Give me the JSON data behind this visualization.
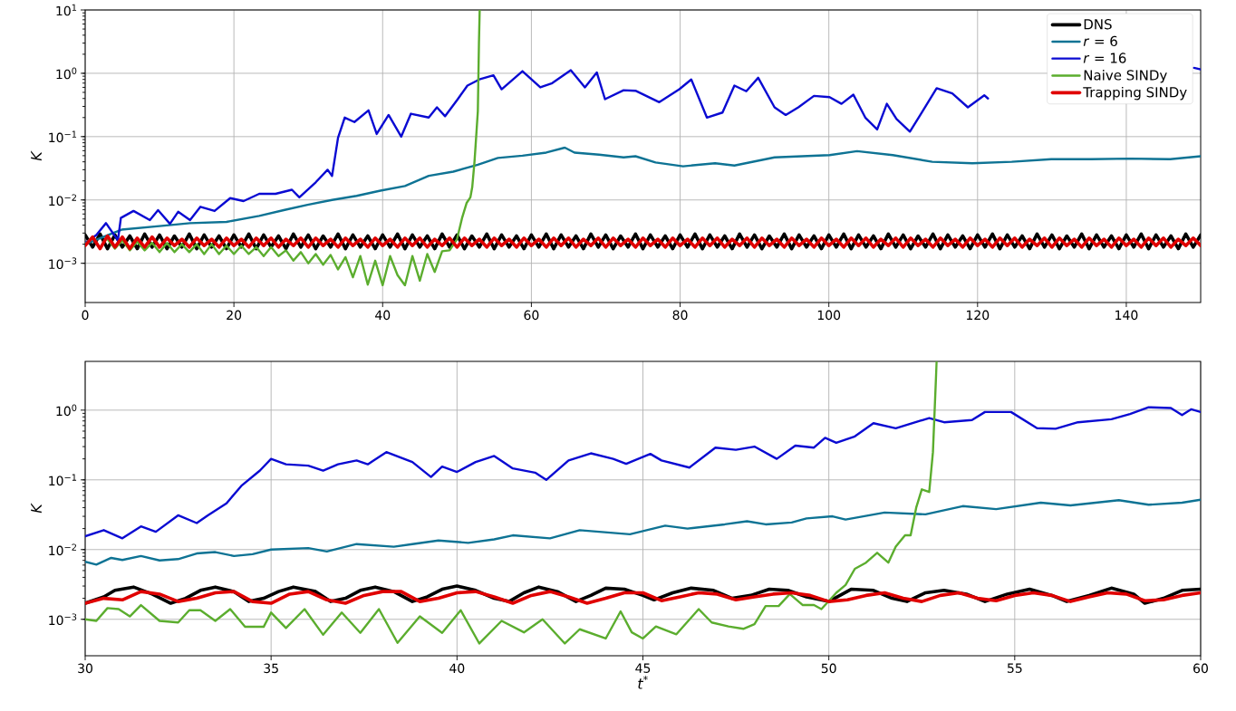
{
  "chart_data": [
    {
      "type": "line",
      "ylabel": "K",
      "log": "y",
      "grid": true,
      "legend": "top right",
      "xlim": [
        0,
        150
      ],
      "xticks": [
        0,
        20,
        40,
        60,
        80,
        100,
        120,
        140
      ],
      "ylim": [
        0.00024,
        10
      ],
      "yticks": [
        {
          "value": 0.001,
          "label": "10$^{−3}$"
        },
        {
          "value": 0.01,
          "label": "10$^{−2}$"
        },
        {
          "value": 0.1,
          "label": "10$^{−1}$"
        },
        {
          "value": 1,
          "label": "10$^{0}$"
        },
        {
          "value": 10,
          "label": "10$^{1}$"
        }
      ],
      "x": [
        0,
        1,
        2,
        3,
        4,
        5,
        6,
        7,
        8,
        9,
        10,
        11,
        12,
        13,
        14,
        15,
        16,
        17,
        18,
        19,
        20,
        21,
        22,
        23,
        24,
        25,
        26,
        27,
        28,
        29,
        30,
        31,
        32,
        33,
        34,
        35,
        36,
        37,
        38,
        39,
        40,
        41,
        42,
        43,
        44,
        45,
        46,
        47,
        48,
        49,
        50,
        51,
        52,
        53,
        54,
        55,
        56,
        57,
        58,
        59,
        60,
        61,
        62,
        63,
        64,
        65,
        66,
        67,
        68,
        69,
        70,
        71,
        72,
        73,
        74,
        75,
        76,
        77,
        78,
        79,
        80,
        81,
        82,
        83,
        84,
        85,
        86,
        87,
        88,
        89,
        90,
        91,
        92,
        93,
        94,
        95,
        96,
        97,
        98,
        99,
        100,
        101,
        102,
        103,
        104,
        105,
        106,
        107,
        108,
        109,
        110,
        111,
        112,
        113,
        114,
        115,
        116,
        117,
        118,
        119,
        120,
        121,
        122,
        123,
        124,
        125,
        126,
        127,
        128,
        129,
        130,
        131,
        132,
        133,
        134,
        135,
        136,
        137,
        138,
        139,
        140,
        141,
        142,
        143,
        144,
        145,
        146,
        147,
        148,
        149,
        150
      ],
      "series": [
        {
          "name": "DNS",
          "color": "#000000",
          "values": [
            0.0028,
            0.0018,
            0.0029,
            0.0017,
            0.0028,
            0.0018,
            0.0027,
            0.0017,
            0.0029,
            0.0018,
            0.0028,
            0.0017,
            0.0027,
            0.0018,
            0.0029,
            0.0017,
            0.0028,
            0.0018,
            0.0027,
            0.0017,
            0.0028,
            0.0018,
            0.0029,
            0.0017,
            0.0028,
            0.0018,
            0.0027,
            0.0017,
            0.0029,
            0.0018,
            0.0028,
            0.0017,
            0.0027,
            0.0018,
            0.0029,
            0.0017,
            0.0028,
            0.0018,
            0.0027,
            0.0017,
            0.0028,
            0.0018,
            0.0029,
            0.0017,
            0.0028,
            0.0018,
            0.0027,
            0.0017,
            0.0029,
            0.0018,
            0.0028,
            0.0017,
            0.0027,
            0.0018,
            0.0029,
            0.0017,
            0.0028,
            0.0018,
            0.0027,
            0.0017,
            0.0028,
            0.0018,
            0.0029,
            0.0017,
            0.0028,
            0.0018,
            0.0027,
            0.0017,
            0.0029,
            0.0018,
            0.0028,
            0.0017,
            0.0027,
            0.0018,
            0.0029,
            0.0017,
            0.0028,
            0.0018,
            0.0027,
            0.0017,
            0.0028,
            0.0018,
            0.0029,
            0.0017,
            0.0028,
            0.0018,
            0.0027,
            0.0017,
            0.0029,
            0.0018,
            0.0028,
            0.0017,
            0.0027,
            0.0018,
            0.0029,
            0.0017,
            0.0028,
            0.0018,
            0.0027,
            0.0017,
            0.0028,
            0.0018,
            0.0029,
            0.0017,
            0.0028,
            0.0018,
            0.0027,
            0.0017,
            0.0029,
            0.0018,
            0.0028,
            0.0017,
            0.0027,
            0.0018,
            0.0029,
            0.0017,
            0.0028,
            0.0018,
            0.0027,
            0.0017,
            0.0028,
            0.0018,
            0.0029,
            0.0017,
            0.0028,
            0.0018,
            0.0027,
            0.0017,
            0.0029,
            0.0018,
            0.0028,
            0.0017,
            0.0027,
            0.0018,
            0.0029,
            0.0017,
            0.0028,
            0.0018,
            0.0027,
            0.0017,
            0.0028,
            0.0018,
            0.0029,
            0.0017,
            0.0028,
            0.0018,
            0.0027,
            0.0017,
            0.0029,
            0.0018,
            0.0028
          ]
        },
        {
          "name": "*r* = 6",
          "color": "#0e7394",
          "x": [
            0,
            4.9,
            10.3,
            14.1,
            19,
            23.4,
            26.7,
            29.9,
            33.2,
            36.5,
            39.7,
            43,
            46.2,
            49.5,
            52.8,
            55.5,
            58.8,
            62,
            64.5,
            65.8,
            69.1,
            72.4,
            74,
            76.7,
            80.4,
            84.7,
            87.3,
            92.7,
            96.4,
            100.1,
            103.8,
            108.6,
            113.9,
            119.3,
            124.6,
            129.9,
            135.2,
            140.5,
            145.9,
            150
          ],
          "values": [
            0.002,
            0.0034,
            0.0039,
            0.0043,
            0.0045,
            0.0056,
            0.0069,
            0.0084,
            0.01,
            0.0116,
            0.014,
            0.0166,
            0.024,
            0.028,
            0.036,
            0.046,
            0.05,
            0.056,
            0.067,
            0.056,
            0.052,
            0.047,
            0.049,
            0.039,
            0.034,
            0.038,
            0.035,
            0.047,
            0.049,
            0.051,
            0.059,
            0.051,
            0.04,
            0.038,
            0.04,
            0.044,
            0.044,
            0.045,
            0.044,
            0.049
          ]
        },
        {
          "name": "*r* = 16",
          "color": "#0a0ad2",
          "x": [
            0,
            1.5,
            2.8,
            4.4,
            4.8,
            6.5,
            8.7,
            9.8,
            11.4,
            12.5,
            14.1,
            15.5,
            17.4,
            19.5,
            21.3,
            23.4,
            25.6,
            27.8,
            28.8,
            31,
            32.6,
            33.2,
            34,
            34.9,
            36.2,
            38.1,
            39.2,
            40.8,
            42.5,
            43.8,
            46.2,
            47.3,
            48.4,
            50.1,
            51.4,
            53,
            54.9,
            56,
            58.8,
            61.2,
            62.8,
            65.3,
            67.2,
            68.8,
            69.9,
            72.4,
            74,
            77.2,
            79.9,
            81.5,
            83.6,
            85.7,
            87.3,
            88.9,
            90.5,
            92.7,
            94.2,
            95.9,
            98,
            100.1,
            101.7,
            103.3,
            104.9,
            106.5,
            107.8,
            109.1,
            110.9,
            112.3,
            114.5,
            116.6,
            118.7,
            120.9,
            121.4,
            135,
            149.1,
            150
          ],
          "values": [
            0.0021,
            0.0028,
            0.0043,
            0.0023,
            0.0052,
            0.0067,
            0.0048,
            0.0069,
            0.0042,
            0.0065,
            0.0048,
            0.0078,
            0.0067,
            0.0107,
            0.0096,
            0.0125,
            0.0125,
            0.0145,
            0.011,
            0.019,
            0.03,
            0.024,
            0.096,
            0.2,
            0.17,
            0.26,
            0.11,
            0.22,
            0.1,
            0.23,
            0.2,
            0.29,
            0.21,
            0.39,
            0.64,
            0.8,
            0.93,
            0.56,
            1.08,
            0.6,
            0.7,
            1.12,
            0.6,
            1.03,
            0.39,
            0.54,
            0.53,
            0.35,
            0.56,
            0.8,
            0.2,
            0.24,
            0.64,
            0.52,
            0.85,
            0.29,
            0.22,
            0.29,
            0.44,
            0.42,
            0.33,
            0.46,
            0.2,
            0.13,
            0.33,
            0.19,
            0.12,
            0.22,
            0.58,
            0.48,
            0.29,
            0.45,
            0.4,
            null,
            1.22,
            1.15
          ]
        },
        {
          "name": "Naive SINDy",
          "color": "#5bad2e",
          "x": [
            0,
            1,
            2,
            3,
            4,
            5,
            6,
            7,
            8,
            9,
            10,
            11,
            12,
            13,
            14,
            15,
            16,
            17,
            18,
            19,
            20,
            21,
            22,
            23,
            24,
            25,
            26,
            27,
            28,
            29,
            30,
            31,
            32,
            33,
            34,
            35,
            36,
            37,
            38,
            39,
            40,
            41,
            42,
            43,
            44,
            45,
            46,
            47,
            48,
            49,
            50,
            50.7,
            51.3,
            51.8,
            52.05,
            52.35,
            52.5,
            52.8,
            52.95,
            53.05
          ],
          "values": [
            0.002,
            0.0026,
            null,
            0.0024,
            0.0017,
            0.0023,
            0.0016,
            0.0022,
            0.0016,
            0.0021,
            0.0015,
            0.0021,
            0.0015,
            0.002,
            0.0015,
            0.002,
            0.0014,
            0.002,
            0.0014,
            0.0019,
            0.0014,
            0.0019,
            0.0014,
            0.0018,
            0.0013,
            0.0018,
            0.0013,
            0.0016,
            0.0011,
            0.0015,
            0.001,
            0.0014,
            0.00095,
            0.00135,
            0.0008,
            0.00125,
            0.0006,
            0.0013,
            0.00046,
            0.0011,
            0.00045,
            0.0013,
            0.00065,
            0.00045,
            0.0013,
            0.00053,
            0.0014,
            0.00073,
            0.00155,
            0.0016,
            0.0024,
            0.0053,
            0.009,
            0.011,
            0.016,
            0.04,
            0.073,
            0.25,
            3,
            10
          ]
        },
        {
          "name": "Trapping SINDy",
          "color": "#e00000",
          "values": [
            0.0019,
            0.0026,
            0.0017,
            0.0027,
            0.0018,
            0.0026,
            0.0017,
            0.0025,
            0.0018,
            0.0026,
            0.0018,
            0.0025,
            0.0019,
            0.0024,
            0.0018,
            0.0025,
            0.0019,
            0.0024,
            0.0018,
            0.0025,
            0.0019,
            0.0024,
            0.0018,
            0.0025,
            0.0019,
            0.0025,
            0.0018,
            0.0024,
            0.0019,
            0.0025,
            0.0018,
            0.0025,
            0.0019,
            0.0024,
            0.0018,
            0.0025,
            0.0019,
            0.0024,
            0.0018,
            0.0025,
            0.0019,
            0.0024,
            0.0018,
            0.0025,
            0.0019,
            0.0025,
            0.0018,
            0.0024,
            0.0019,
            0.0025,
            0.0018,
            0.0025,
            0.0019,
            0.0024,
            0.0018,
            0.0025,
            0.0019,
            0.0024,
            0.0018,
            0.0025,
            0.0019,
            0.0024,
            0.0018,
            0.0025,
            0.0019,
            0.0025,
            0.0018,
            0.0024,
            0.0019,
            0.0025,
            0.0018,
            0.0025,
            0.0019,
            0.0024,
            0.0018,
            0.0025,
            0.0019,
            0.0024,
            0.0018,
            0.0025,
            0.0019,
            0.0024,
            0.0018,
            0.0025,
            0.0019,
            0.0025,
            0.0018,
            0.0024,
            0.0019,
            0.0025,
            0.0018,
            0.0025,
            0.0019,
            0.0024,
            0.0018,
            0.0025,
            0.0019,
            0.0024,
            0.0018,
            0.0025,
            0.0019,
            0.0024,
            0.0018,
            0.0025,
            0.0019,
            0.0025,
            0.0018,
            0.0024,
            0.0019,
            0.0025,
            0.0018,
            0.0025,
            0.0019,
            0.0024,
            0.0018,
            0.0025,
            0.0019,
            0.0024,
            0.0018,
            0.0025,
            0.0019,
            0.0024,
            0.0018,
            0.0025,
            0.0019,
            0.0025,
            0.0018,
            0.0024,
            0.0019,
            0.0025,
            0.0018,
            0.0025,
            0.0019,
            0.0024,
            0.0018,
            0.0025,
            0.0019,
            0.0024,
            0.0018,
            0.0025,
            0.0019,
            0.0024,
            0.0018,
            0.0025,
            0.0019,
            0.0025,
            0.0018,
            0.0024,
            0.0019,
            0.0025,
            0.0019
          ]
        }
      ]
    },
    {
      "type": "line",
      "xlabel": "t$^{*}$",
      "ylabel": "K",
      "log": "y",
      "grid": true,
      "xlim": [
        30,
        60
      ],
      "xticks": [
        30,
        35,
        40,
        45,
        50,
        55,
        60
      ],
      "ylim": [
        0.0003,
        5
      ],
      "yticks": [
        {
          "value": 0.001,
          "label": "10$^{−3}$"
        },
        {
          "value": 0.01,
          "label": "10$^{−2}$"
        },
        {
          "value": 0.1,
          "label": "10$^{−1}$"
        },
        {
          "value": 1,
          "label": "10$^{0}$"
        }
      ],
      "x": [
        30,
        30.5,
        31,
        31.5,
        32,
        32.5,
        33,
        33.5,
        34,
        34.5,
        35,
        35.5,
        36,
        36.5,
        37,
        37.5,
        38,
        38.5,
        39,
        39.5,
        40,
        40.5,
        41,
        41.5,
        42,
        42.5,
        43,
        43.5,
        44,
        44.5,
        45,
        45.5,
        46,
        46.5,
        47,
        47.5,
        48,
        48.5,
        49,
        49.5,
        50,
        50.5,
        51,
        51.5,
        52,
        52.5,
        53,
        53.5,
        54,
        54.5,
        55,
        55.5,
        56,
        56.5,
        57,
        57.5,
        58,
        58.5,
        59,
        59.5,
        60
      ],
      "series": [
        {
          "color": "#000000",
          "x": [
            30,
            30.5,
            30.8,
            31.3,
            31.8,
            32.3,
            32.7,
            33.1,
            33.5,
            34,
            34.4,
            34.8,
            35.2,
            35.6,
            36.2,
            36.6,
            37,
            37.4,
            37.8,
            38.3,
            38.8,
            39.2,
            39.6,
            40,
            40.5,
            41,
            41.4,
            41.8,
            42.2,
            42.7,
            43.2,
            43.6,
            44,
            44.5,
            45,
            45.3,
            45.8,
            46.3,
            46.9,
            47.4,
            47.9,
            48.4,
            48.9,
            49.4,
            50,
            50.6,
            51.2,
            51.7,
            52.1,
            52.6,
            53.1,
            53.7,
            54.2,
            54.8,
            55.4,
            56,
            56.4,
            57,
            57.6,
            58.2,
            58.5,
            59,
            59.5,
            60
          ],
          "values": [
            0.0017,
            0.0021,
            0.0026,
            0.0029,
            0.0023,
            0.0017,
            0.002,
            0.0026,
            0.0029,
            0.0025,
            0.0018,
            0.002,
            0.0025,
            0.0029,
            0.0025,
            0.0018,
            0.002,
            0.0026,
            0.0029,
            0.0025,
            0.0018,
            0.0021,
            0.0027,
            0.003,
            0.0026,
            0.002,
            0.0018,
            0.0024,
            0.0029,
            0.0025,
            0.0018,
            0.0022,
            0.0028,
            0.0027,
            0.0022,
            0.0019,
            0.0024,
            0.0028,
            0.0026,
            0.002,
            0.0022,
            0.0027,
            0.0026,
            0.0021,
            0.0018,
            0.0027,
            0.0026,
            0.002,
            0.0018,
            0.0024,
            0.0026,
            0.0023,
            0.0018,
            0.0023,
            0.0027,
            0.0022,
            0.0018,
            0.0022,
            0.0028,
            0.0023,
            0.0017,
            0.002,
            0.0026,
            0.0027
          ]
        },
        {
          "color": "#0e7394",
          "x": [
            30,
            30.3,
            30.7,
            31,
            31.5,
            32,
            32.5,
            33,
            33.5,
            34,
            34.5,
            35,
            36,
            36.5,
            37.3,
            38.3,
            38.8,
            39.5,
            40.3,
            41,
            41.5,
            42.5,
            43.3,
            44.65,
            45.6,
            46.2,
            47.2,
            47.8,
            48.3,
            49,
            49.4,
            50.1,
            50.45,
            51.5,
            52.6,
            53.6,
            54.5,
            55.7,
            56.5,
            57.8,
            58.6,
            59.5,
            60
          ],
          "values": [
            0.0067,
            0.0061,
            0.0076,
            0.0071,
            0.0081,
            0.007,
            0.0073,
            0.0088,
            0.0092,
            0.0081,
            0.0086,
            0.01,
            0.0105,
            0.0094,
            0.012,
            0.011,
            0.012,
            0.0135,
            0.0125,
            0.014,
            0.016,
            0.0145,
            0.019,
            0.0166,
            0.022,
            0.02,
            0.023,
            0.0255,
            0.023,
            0.0245,
            0.028,
            0.03,
            0.027,
            0.034,
            0.032,
            0.042,
            0.038,
            0.047,
            0.043,
            0.051,
            0.044,
            0.047,
            0.052
          ]
        },
        {
          "color": "#0a0ad2",
          "x": [
            30,
            30.5,
            31,
            31.5,
            31.9,
            32.5,
            33,
            33.3,
            33.8,
            34.2,
            34.7,
            35,
            35.4,
            36,
            36.4,
            36.8,
            37.3,
            37.6,
            38.1,
            38.8,
            39.3,
            39.6,
            40,
            40.5,
            41,
            41.5,
            42.1,
            42.4,
            43,
            43.6,
            44.2,
            44.55,
            45.2,
            45.5,
            46.25,
            46.95,
            47.5,
            48,
            48.6,
            49.1,
            49.6,
            49.9,
            50.2,
            50.7,
            51.2,
            51.8,
            52.7,
            53.1,
            53.85,
            54.2,
            54.9,
            55.6,
            56.1,
            56.7,
            57.6,
            58.1,
            58.6,
            59.2,
            59.5,
            59.75,
            60
          ],
          "values": [
            0.0155,
            0.019,
            0.0145,
            0.0215,
            0.018,
            0.031,
            0.024,
            0.031,
            0.046,
            0.082,
            0.136,
            0.2,
            0.167,
            0.16,
            0.136,
            0.167,
            0.19,
            0.167,
            0.25,
            0.18,
            0.11,
            0.155,
            0.13,
            0.18,
            0.22,
            0.146,
            0.127,
            0.1,
            0.19,
            0.24,
            0.2,
            0.17,
            0.236,
            0.19,
            0.15,
            0.29,
            0.27,
            0.3,
            0.2,
            0.31,
            0.29,
            0.4,
            0.34,
            0.42,
            0.65,
            0.55,
            0.77,
            0.67,
            0.72,
            0.94,
            0.94,
            0.55,
            0.54,
            0.67,
            0.74,
            0.88,
            1.1,
            1.07,
            0.85,
            1.03,
            0.94
          ]
        },
        {
          "color": "#5bad2e",
          "x": [
            30,
            30.3,
            30.6,
            30.9,
            31.2,
            31.5,
            32,
            32.5,
            32.8,
            33.1,
            33.5,
            33.9,
            34.3,
            34.8,
            35,
            35.4,
            35.9,
            36.4,
            36.9,
            37.4,
            37.9,
            38.4,
            39,
            39.6,
            40.1,
            40.6,
            41.2,
            41.8,
            42.3,
            42.9,
            43.3,
            44,
            44.4,
            44.7,
            45,
            45.35,
            45.9,
            46.5,
            46.85,
            47.3,
            47.7,
            48,
            48.3,
            48.65,
            48.95,
            49.3,
            49.6,
            49.8,
            50.2,
            50.45,
            50.7,
            51,
            51.3,
            51.6,
            51.8,
            52.05,
            52.2,
            52.35,
            52.5,
            52.7,
            52.8,
            52.9
          ],
          "values": [
            0.001,
            0.00095,
            0.00145,
            0.0014,
            0.0011,
            0.0016,
            0.00095,
            0.0009,
            0.00135,
            0.00135,
            0.00095,
            0.0014,
            0.00078,
            0.00078,
            0.00125,
            0.00075,
            0.0014,
            0.0006,
            0.00125,
            0.00064,
            0.0014,
            0.00046,
            0.0011,
            0.00064,
            0.00135,
            0.00045,
            0.00095,
            0.00065,
            0.001,
            0.00045,
            0.00072,
            0.00053,
            0.0013,
            0.00065,
            0.00053,
            0.00079,
            0.00061,
            0.0014,
            0.0009,
            0.00079,
            0.00073,
            0.00085,
            0.00155,
            0.00155,
            0.0023,
            0.0016,
            0.0016,
            0.0014,
            0.0024,
            0.0031,
            0.0053,
            0.0065,
            0.009,
            0.0065,
            0.011,
            0.016,
            0.016,
            0.04,
            0.073,
            0.067,
            0.25,
            5
          ]
        },
        {
          "color": "#e00000",
          "values": [
            0.0017,
            0.002,
            0.0019,
            0.0025,
            0.0023,
            0.0018,
            0.002,
            0.0024,
            0.0025,
            0.0018,
            0.0017,
            0.0023,
            0.0025,
            0.0019,
            0.0017,
            0.0022,
            0.0025,
            0.0025,
            0.0018,
            0.002,
            0.0024,
            0.0025,
            0.0021,
            0.0017,
            0.0022,
            0.0025,
            0.0021,
            0.0017,
            0.002,
            0.0024,
            0.0024,
            0.00185,
            0.0021,
            0.0024,
            0.0023,
            0.0019,
            0.0021,
            0.0023,
            0.0024,
            0.0022,
            0.0018,
            0.0019,
            0.0022,
            0.0024,
            0.002,
            0.0018,
            0.0022,
            0.0024,
            0.002,
            0.00185,
            0.0022,
            0.0024,
            0.0022,
            0.0018,
            0.0021,
            0.0024,
            0.0023,
            0.00185,
            0.0019,
            0.0022,
            0.0024
          ]
        }
      ]
    }
  ]
}
